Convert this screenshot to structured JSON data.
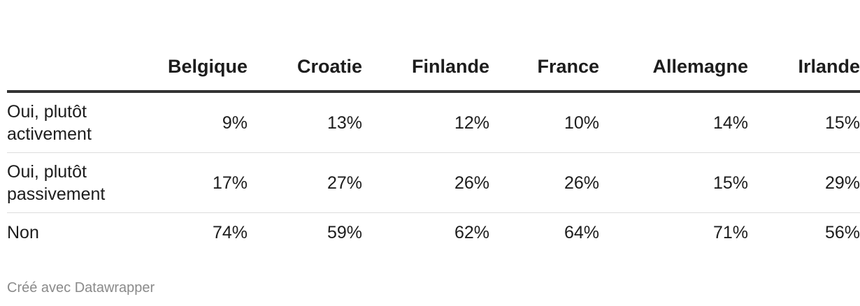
{
  "table": {
    "header": [
      "",
      "Belgique",
      "Croatie",
      "Finlande",
      "France",
      "Allemagne",
      "Irlande"
    ],
    "rows": [
      [
        "Oui, plutôt activement",
        "9%",
        "13%",
        "12%",
        "10%",
        "14%",
        "15%"
      ],
      [
        "Oui, plutôt passivement",
        "17%",
        "27%",
        "26%",
        "26%",
        "15%",
        "29%"
      ],
      [
        "Non",
        "74%",
        "59%",
        "62%",
        "64%",
        "71%",
        "56%"
      ]
    ]
  },
  "footer": "Créé avec Datawrapper"
}
